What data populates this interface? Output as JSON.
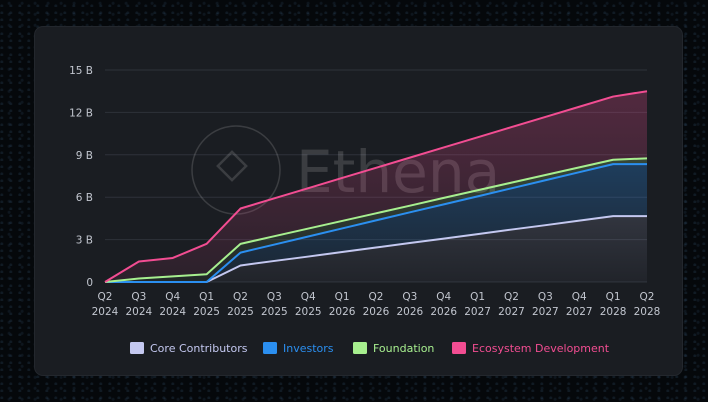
{
  "watermark": {
    "text": "Ethena"
  },
  "chart_data": {
    "type": "area",
    "stacked": true,
    "categories": [
      "Q2 2024",
      "Q3 2024",
      "Q4 2024",
      "Q1 2025",
      "Q2 2025",
      "Q3 2025",
      "Q4 2025",
      "Q1 2026",
      "Q2 2026",
      "Q3 2026",
      "Q4 2026",
      "Q1 2027",
      "Q2 2027",
      "Q3 2027",
      "Q4 2027",
      "Q1 2028",
      "Q2 2028"
    ],
    "x_tick_labels": [
      [
        "Q2",
        "2024"
      ],
      [
        "Q3",
        "2024"
      ],
      [
        "Q4",
        "2024"
      ],
      [
        "Q1",
        "2025"
      ],
      [
        "Q2",
        "2025"
      ],
      [
        "Q3",
        "2025"
      ],
      [
        "Q4",
        "2025"
      ],
      [
        "Q1",
        "2026"
      ],
      [
        "Q2",
        "2026"
      ],
      [
        "Q3",
        "2026"
      ],
      [
        "Q4",
        "2026"
      ],
      [
        "Q1",
        "2027"
      ],
      [
        "Q2",
        "2027"
      ],
      [
        "Q3",
        "2027"
      ],
      [
        "Q4",
        "2027"
      ],
      [
        "Q1",
        "2028"
      ],
      [
        "Q2",
        "2028"
      ]
    ],
    "y_ticks": [
      0,
      3,
      6,
      9,
      12,
      15
    ],
    "y_tick_labels": [
      "0",
      "3 B",
      "6 B",
      "9 B",
      "12 B",
      "15 B"
    ],
    "ylim": [
      0,
      15
    ],
    "grid": "horizontal",
    "legend_position": "bottom",
    "series_cumulative": [
      {
        "name": "Core Contributors",
        "color": "#c4c8f0",
        "values": [
          0,
          0,
          0,
          0,
          1.17,
          1.49,
          1.8,
          2.12,
          2.44,
          2.76,
          3.07,
          3.39,
          3.71,
          4.02,
          4.34,
          4.66,
          4.66
        ]
      },
      {
        "name": "Investors",
        "color": "#2b8ff0",
        "values": [
          0,
          0,
          0,
          0,
          2.08,
          2.65,
          3.22,
          3.79,
          4.36,
          4.93,
          5.49,
          6.06,
          6.63,
          7.2,
          7.77,
          8.34,
          8.34
        ]
      },
      {
        "name": "Foundation",
        "color": "#a7ef8f",
        "values": [
          0,
          0.25,
          0.4,
          0.55,
          2.7,
          3.24,
          3.78,
          4.32,
          4.86,
          5.4,
          5.95,
          6.49,
          7.03,
          7.57,
          8.11,
          8.65,
          8.75
        ]
      },
      {
        "name": "Ecosystem Development",
        "color": "#f24d92",
        "values": [
          0,
          1.45,
          1.7,
          2.7,
          5.2,
          5.92,
          6.64,
          7.36,
          8.08,
          8.8,
          9.52,
          10.24,
          10.96,
          11.68,
          12.4,
          13.12,
          13.5
        ]
      }
    ]
  }
}
